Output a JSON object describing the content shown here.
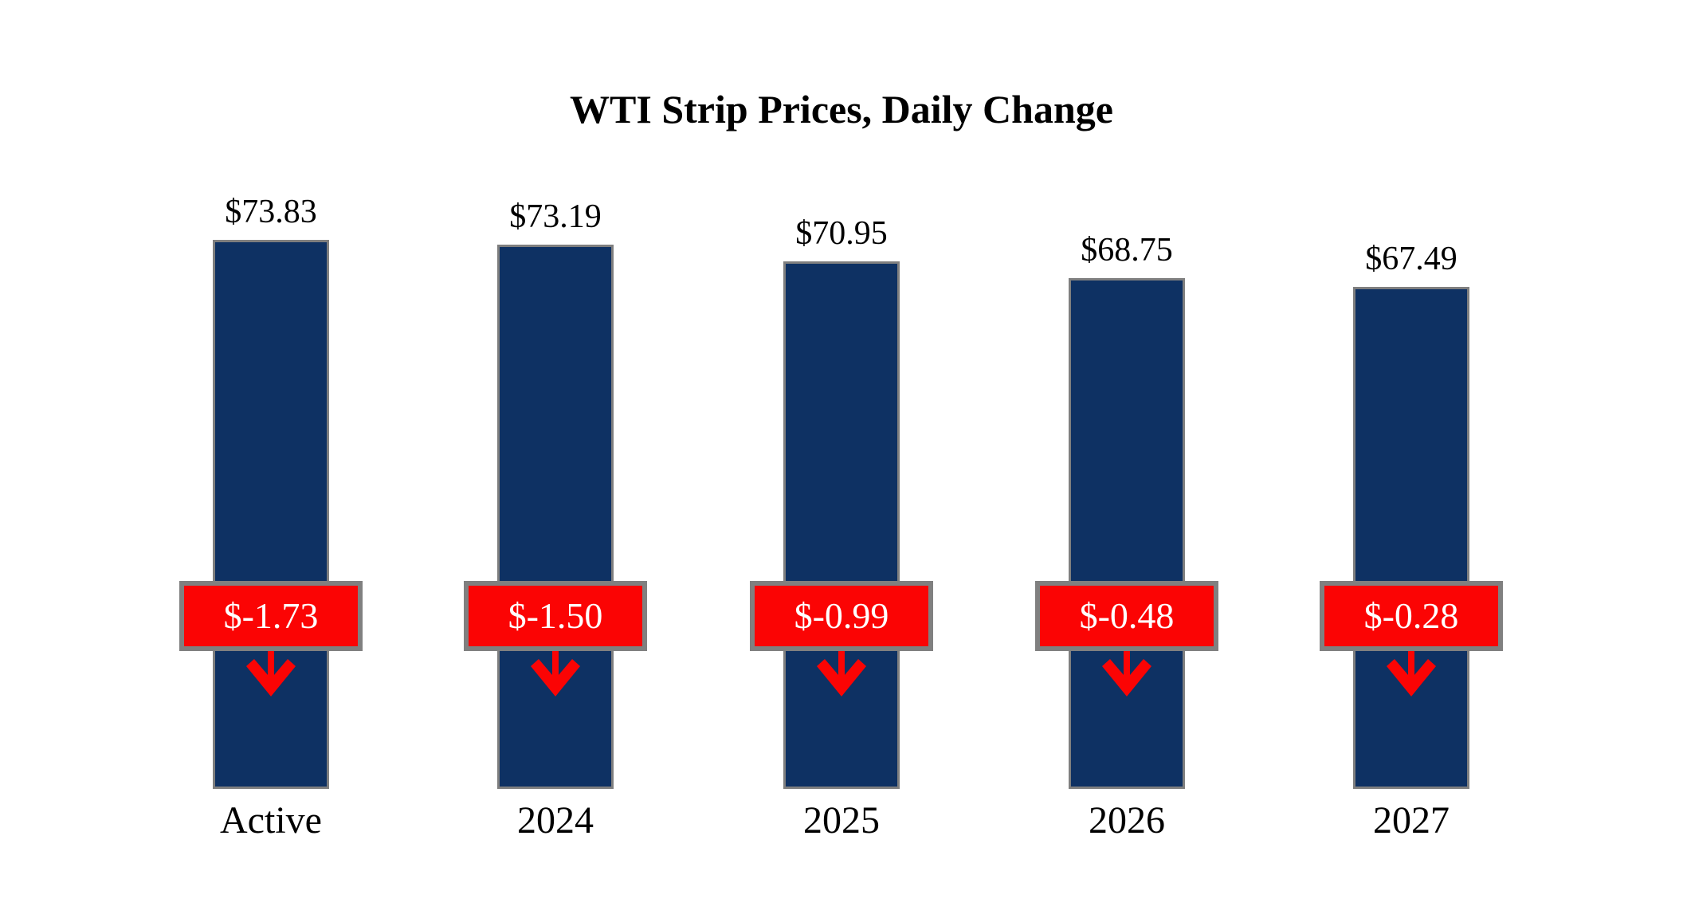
{
  "chart_data": {
    "type": "bar",
    "title": "WTI Strip Prices, Daily Change",
    "categories": [
      "Active",
      "2024",
      "2025",
      "2026",
      "2027"
    ],
    "series": [
      {
        "name": "WTI strip price",
        "values": [
          73.83,
          73.19,
          70.95,
          68.75,
          67.49
        ]
      },
      {
        "name": "Daily change",
        "values": [
          -1.73,
          -1.5,
          -0.99,
          -0.48,
          -0.28
        ]
      }
    ],
    "columns": [
      {
        "category": "Active",
        "price": 73.83,
        "price_label": "$73.83",
        "change": -1.73,
        "change_label": "$-1.73"
      },
      {
        "category": "2024",
        "price": 73.19,
        "price_label": "$73.19",
        "change": -1.5,
        "change_label": "$-1.50"
      },
      {
        "category": "2025",
        "price": 70.95,
        "price_label": "$70.95",
        "change": -0.99,
        "change_label": "$-0.99"
      },
      {
        "category": "2026",
        "price": 68.75,
        "price_label": "$68.75",
        "change": -0.48,
        "change_label": "$-0.48"
      },
      {
        "category": "2027",
        "price": 67.49,
        "price_label": "$67.49",
        "change": -0.28,
        "change_label": "$-0.28"
      }
    ],
    "colors": {
      "bar_fill": "#0E3163",
      "bar_border": "#7F7F7F",
      "change_box_fill": "#FB0404",
      "change_box_border": "#808080",
      "change_text": "#FFFFFF",
      "label_text": "#000000",
      "background": "#FFFFFF"
    },
    "layout_hints": {
      "legend": "none",
      "grid": false,
      "value_axis_hidden": true,
      "bar_value_scale": "bar length proportional to price, zero baseline"
    }
  }
}
